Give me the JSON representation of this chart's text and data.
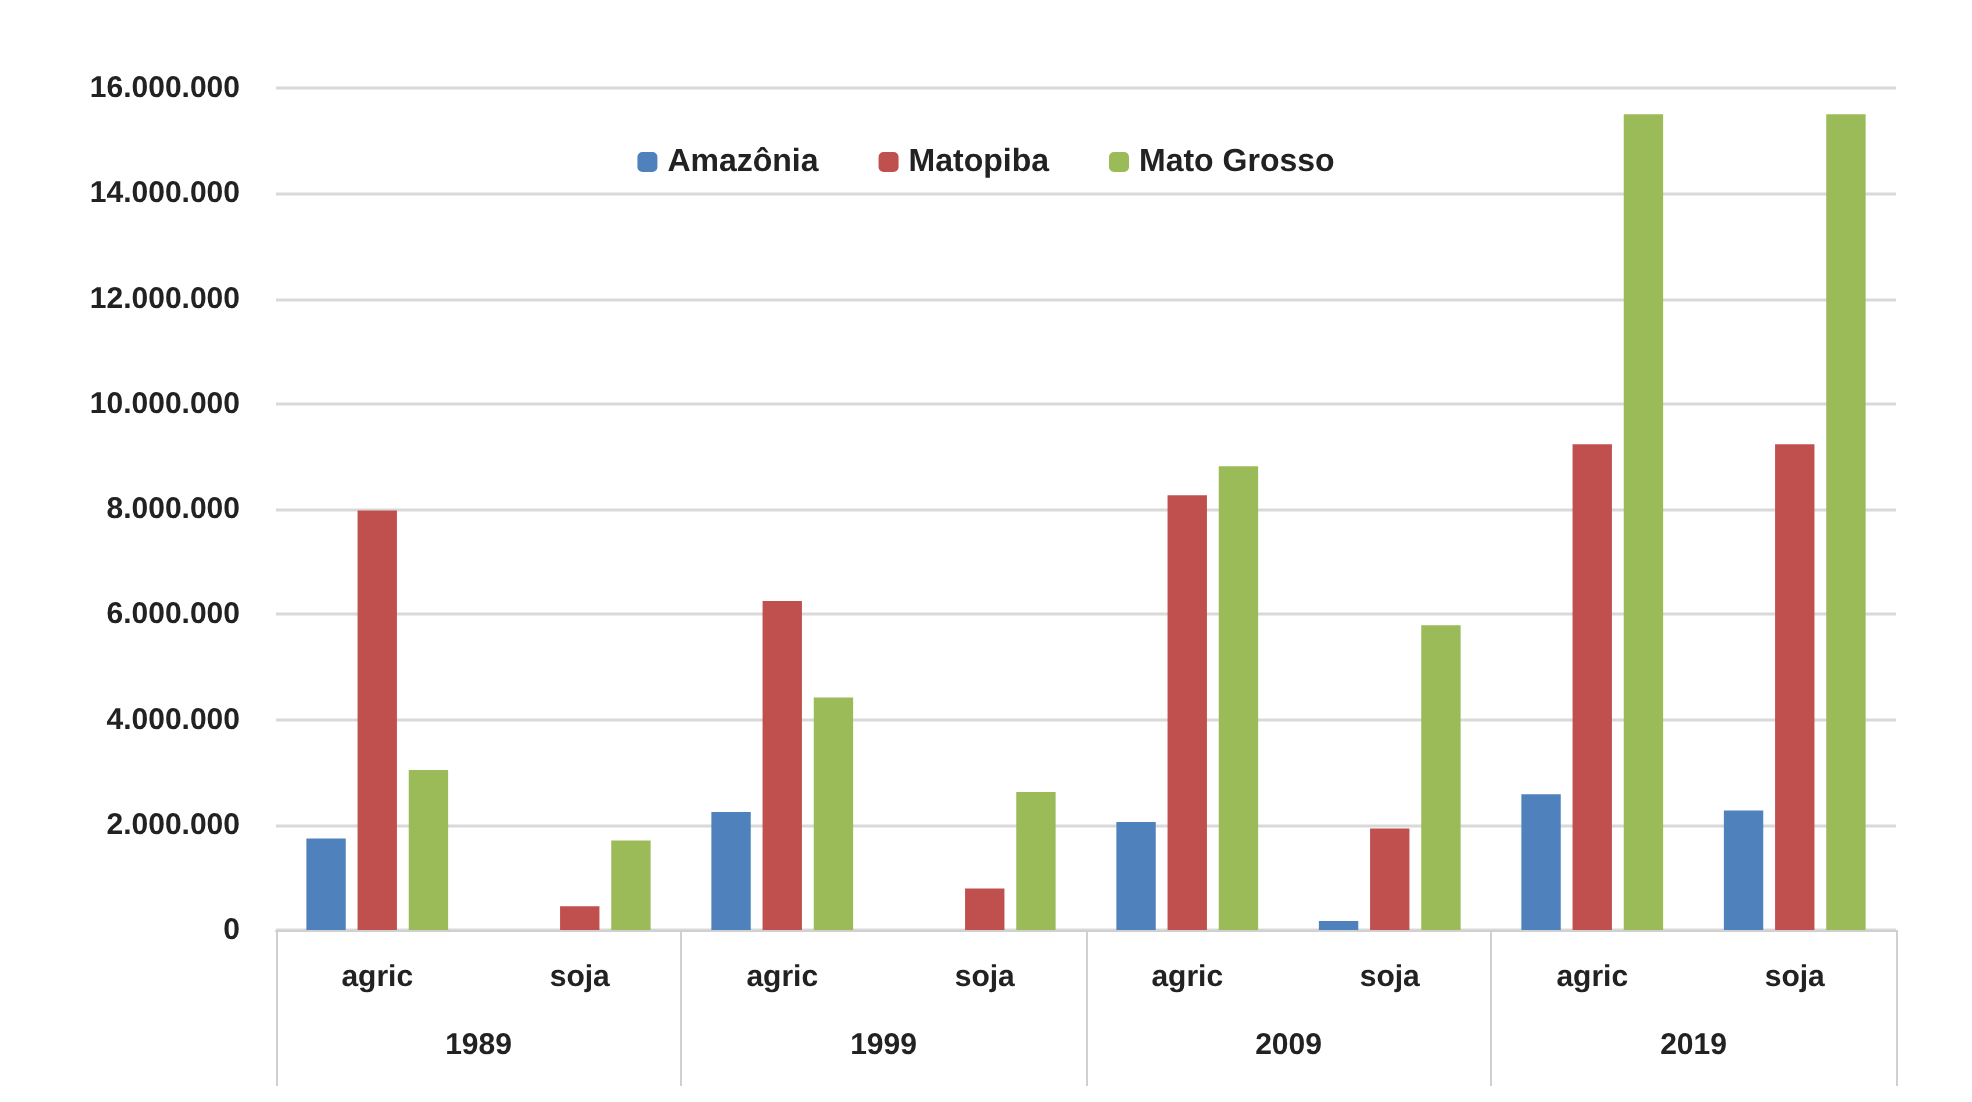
{
  "chart_data": {
    "type": "bar",
    "categories": [
      "agric",
      "soja",
      "agric",
      "soja",
      "agric",
      "soja",
      "agric",
      "soja"
    ],
    "annotations": [
      "1989",
      "1999",
      "2009",
      "2019"
    ],
    "series": [
      {
        "name": "Amazônia",
        "color": "#4f81bd",
        "values": [
          1740000,
          null,
          2240000,
          null,
          2050000,
          170000,
          2580000,
          2270000
        ]
      },
      {
        "name": "Matopiba",
        "color": "#c0504d",
        "values": [
          7970000,
          450000,
          6250000,
          790000,
          8260000,
          1930000,
          9230000,
          9230000
        ]
      },
      {
        "name": "Mato Grosso",
        "color": "#9bbb59",
        "values": [
          3040000,
          1700000,
          4420000,
          2620000,
          8810000,
          5790000,
          15500000,
          15500000
        ]
      }
    ],
    "ylim": [
      0,
      16000000
    ],
    "yticks": [
      0,
      {
        "value": 2000000,
        "label": "2.000.000"
      },
      {
        "value": 4000000,
        "label": "4.000.000"
      },
      {
        "value": 6000000,
        "label": "6.000.000"
      },
      {
        "value": 8000000,
        "label": "8.000.000"
      },
      {
        "value": 10000000,
        "label": "10.000.000"
      },
      {
        "value": 12000000,
        "label": "12.000.000"
      },
      {
        "value": 14000000,
        "label": "14.000.000"
      },
      {
        "value": 16000000,
        "label": "16.000.000"
      }
    ],
    "grid": "y",
    "legend": "top"
  }
}
